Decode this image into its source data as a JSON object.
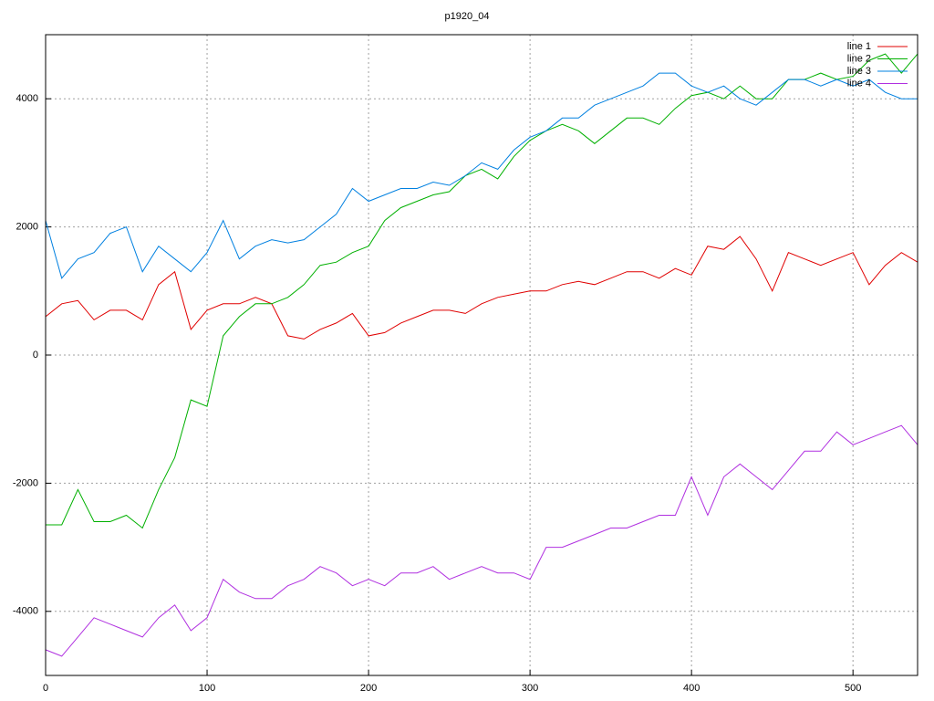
{
  "chart_data": {
    "type": "line",
    "title": "p1920_04",
    "x": [
      0,
      10,
      20,
      30,
      40,
      50,
      60,
      70,
      80,
      90,
      100,
      110,
      120,
      130,
      140,
      150,
      160,
      170,
      180,
      190,
      200,
      210,
      220,
      230,
      240,
      250,
      260,
      270,
      280,
      290,
      300,
      310,
      320,
      330,
      340,
      350,
      360,
      370,
      380,
      390,
      400,
      410,
      420,
      430,
      440,
      450,
      460,
      470,
      480,
      490,
      500,
      510,
      520,
      530,
      540
    ],
    "xlim": [
      0,
      540
    ],
    "ylim": [
      -5000,
      5000
    ],
    "xticks": [
      0,
      100,
      200,
      300,
      400,
      500
    ],
    "yticks": [
      -4000,
      -2000,
      0,
      2000,
      4000
    ],
    "grid": true,
    "legend": "top-right",
    "series": [
      {
        "name": "line 1",
        "color": "#e00000",
        "values": [
          600,
          800,
          850,
          550,
          700,
          700,
          550,
          1100,
          1300,
          400,
          700,
          800,
          800,
          900,
          800,
          300,
          250,
          400,
          500,
          650,
          300,
          350,
          500,
          600,
          700,
          700,
          650,
          800,
          900,
          950,
          1000,
          1000,
          1100,
          1150,
          1100,
          1200,
          1300,
          1300,
          1200,
          1350,
          1250,
          1700,
          1650,
          1850,
          1500,
          1000,
          1600,
          1500,
          1400,
          1500,
          1600,
          1100,
          1400,
          1600,
          1450
        ]
      },
      {
        "name": "line 2",
        "color": "#00b000",
        "values": [
          -2650,
          -2650,
          -2100,
          -2600,
          -2600,
          -2500,
          -2700,
          -2100,
          -1600,
          -700,
          -800,
          300,
          600,
          800,
          800,
          900,
          1100,
          1400,
          1450,
          1600,
          1700,
          2100,
          2300,
          2400,
          2500,
          2550,
          2800,
          2900,
          2750,
          3100,
          3350,
          3500,
          3600,
          3500,
          3300,
          3500,
          3700,
          3700,
          3600,
          3850,
          4050,
          4100,
          4000,
          4200,
          4000,
          4000,
          4300,
          4300,
          4400,
          4300,
          4350,
          4600,
          4700,
          4400,
          4700
        ]
      },
      {
        "name": "line 3",
        "color": "#0080e0",
        "values": [
          2100,
          1200,
          1500,
          1600,
          1900,
          2000,
          1300,
          1700,
          1500,
          1300,
          1600,
          2100,
          1500,
          1700,
          1800,
          1750,
          1800,
          2000,
          2200,
          2600,
          2400,
          2500,
          2600,
          2600,
          2700,
          2650,
          2800,
          3000,
          2900,
          3200,
          3400,
          3500,
          3700,
          3700,
          3900,
          4000,
          4100,
          4200,
          4400,
          4400,
          4200,
          4100,
          4200,
          4000,
          3900,
          4100,
          4300,
          4300,
          4200,
          4300,
          4200,
          4300,
          4100,
          4000,
          4000
        ]
      },
      {
        "name": "line 4",
        "color": "#b030e0",
        "values": [
          -4600,
          -4700,
          -4400,
          -4100,
          -4200,
          -4300,
          -4400,
          -4100,
          -3900,
          -4300,
          -4100,
          -3500,
          -3700,
          -3800,
          -3800,
          -3600,
          -3500,
          -3300,
          -3400,
          -3600,
          -3500,
          -3600,
          -3400,
          -3400,
          -3300,
          -3500,
          -3400,
          -3300,
          -3400,
          -3400,
          -3500,
          -3000,
          -3000,
          -2900,
          -2800,
          -2700,
          -2700,
          -2600,
          -2500,
          -2500,
          -1900,
          -2500,
          -1900,
          -1700,
          -1900,
          -2100,
          -1800,
          -1500,
          -1500,
          -1200,
          -1400,
          -1300,
          -1200,
          -1100,
          -1400
        ]
      }
    ]
  }
}
